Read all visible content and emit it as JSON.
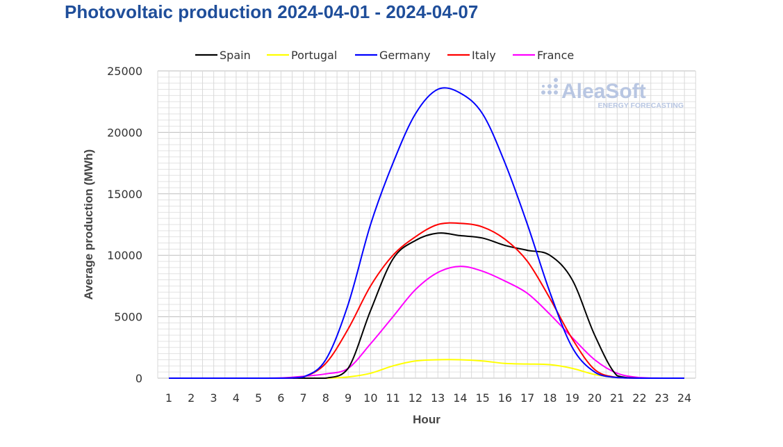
{
  "chart_data": {
    "type": "line",
    "title": "Photovoltaic production 2024-04-01 - 2024-04-07",
    "xlabel": "Hour",
    "ylabel": "Average production (MWh)",
    "x": [
      1,
      2,
      3,
      4,
      5,
      6,
      7,
      8,
      9,
      10,
      11,
      12,
      13,
      14,
      15,
      16,
      17,
      18,
      19,
      20,
      21,
      22,
      23,
      24
    ],
    "xlim": [
      1,
      24
    ],
    "ylim": [
      0,
      25000
    ],
    "yticks": [
      "0",
      "5000",
      "10000",
      "15000",
      "20000",
      "25000"
    ],
    "xticks": [
      "1",
      "2",
      "3",
      "4",
      "5",
      "6",
      "7",
      "8",
      "9",
      "10",
      "11",
      "12",
      "13",
      "14",
      "15",
      "16",
      "17",
      "18",
      "19",
      "20",
      "21",
      "22",
      "23",
      "24"
    ],
    "grid": true,
    "legend_position": "top",
    "series": [
      {
        "name": "Spain",
        "color": "#000000",
        "values": [
          0,
          0,
          0,
          0,
          0,
          0,
          0,
          0,
          800,
          5500,
          9700,
          11200,
          11800,
          11600,
          11400,
          10800,
          10400,
          10000,
          8000,
          3500,
          200,
          0,
          0,
          0
        ]
      },
      {
        "name": "Portugal",
        "color": "#ffff00",
        "values": [
          0,
          0,
          0,
          0,
          0,
          0,
          0,
          0,
          100,
          400,
          1000,
          1400,
          1500,
          1500,
          1400,
          1200,
          1150,
          1100,
          800,
          300,
          50,
          0,
          0,
          0
        ]
      },
      {
        "name": "Germany",
        "color": "#0000ff",
        "values": [
          0,
          0,
          0,
          0,
          0,
          0,
          100,
          1500,
          6000,
          12500,
          17500,
          21500,
          23500,
          23200,
          21500,
          17500,
          12500,
          7000,
          2500,
          500,
          50,
          0,
          0,
          0
        ]
      },
      {
        "name": "Italy",
        "color": "#ff0000",
        "values": [
          0,
          0,
          0,
          0,
          0,
          0,
          100,
          1200,
          4000,
          7500,
          10000,
          11500,
          12500,
          12600,
          12300,
          11300,
          9500,
          6500,
          3200,
          700,
          50,
          0,
          0,
          0
        ]
      },
      {
        "name": "France",
        "color": "#ff00ff",
        "values": [
          0,
          0,
          0,
          0,
          0,
          20,
          150,
          350,
          800,
          2800,
          5000,
          7200,
          8600,
          9100,
          8700,
          7900,
          6900,
          5200,
          3300,
          1500,
          400,
          50,
          0,
          0
        ]
      }
    ]
  },
  "logo": {
    "name": "AleaSoft",
    "tagline": "ENERGY FORECASTING"
  }
}
